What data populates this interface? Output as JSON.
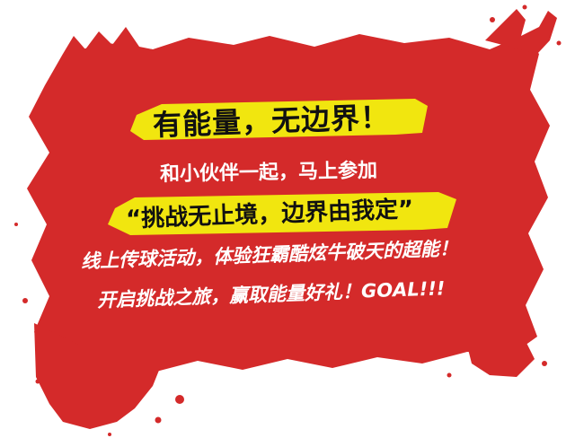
{
  "banner": {
    "colors": {
      "splash": "#d42a2a",
      "highlight": "#f1e60f",
      "text_dark": "#111111",
      "text_light": "#ffffff"
    },
    "line1": "有能量，无边界！",
    "line2": "和小伙伴一起，马上参加",
    "line3": "“挑战无止境，边界由我定”",
    "line4": "线上传球活动，体验狂霸酷炫牛破天的超能！",
    "line5": "开启挑战之旅，赢取能量好礼！GOAL!!!"
  }
}
